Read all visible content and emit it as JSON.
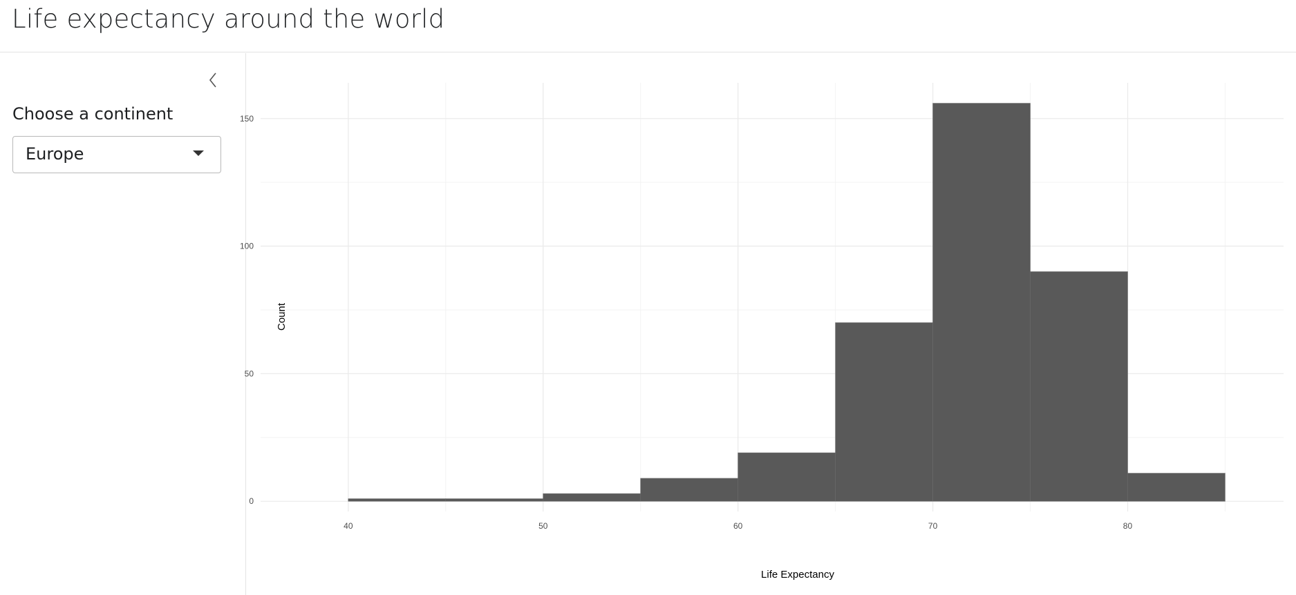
{
  "header": {
    "title": "Life expectancy around the world"
  },
  "sidebar": {
    "collapse_icon": "chevron-left-icon",
    "label": "Choose a continent",
    "select": {
      "selected": "Europe",
      "icon": "caret-down-icon"
    }
  },
  "colors": {
    "bar_fill": "#595959",
    "grid_major": "#ebebeb",
    "grid_minor": "#f3f3f3",
    "border": "#e3e3e3"
  },
  "chart_data": {
    "type": "bar",
    "subtype": "histogram",
    "xlabel": "Life Expectancy",
    "ylabel": "Count",
    "grid": true,
    "xlim": [
      35.5,
      88
    ],
    "ylim": [
      -4,
      164
    ],
    "x_ticks": [
      40,
      50,
      60,
      70,
      80
    ],
    "y_ticks": [
      0,
      50,
      100,
      150
    ],
    "bins": [
      {
        "x0": 40,
        "x1": 45,
        "count": 1
      },
      {
        "x0": 45,
        "x1": 50,
        "count": 1
      },
      {
        "x0": 50,
        "x1": 55,
        "count": 3
      },
      {
        "x0": 55,
        "x1": 60,
        "count": 9
      },
      {
        "x0": 60,
        "x1": 65,
        "count": 19
      },
      {
        "x0": 65,
        "x1": 70,
        "count": 70
      },
      {
        "x0": 70,
        "x1": 75,
        "count": 156
      },
      {
        "x0": 75,
        "x1": 80,
        "count": 90
      },
      {
        "x0": 80,
        "x1": 85,
        "count": 11
      }
    ]
  }
}
